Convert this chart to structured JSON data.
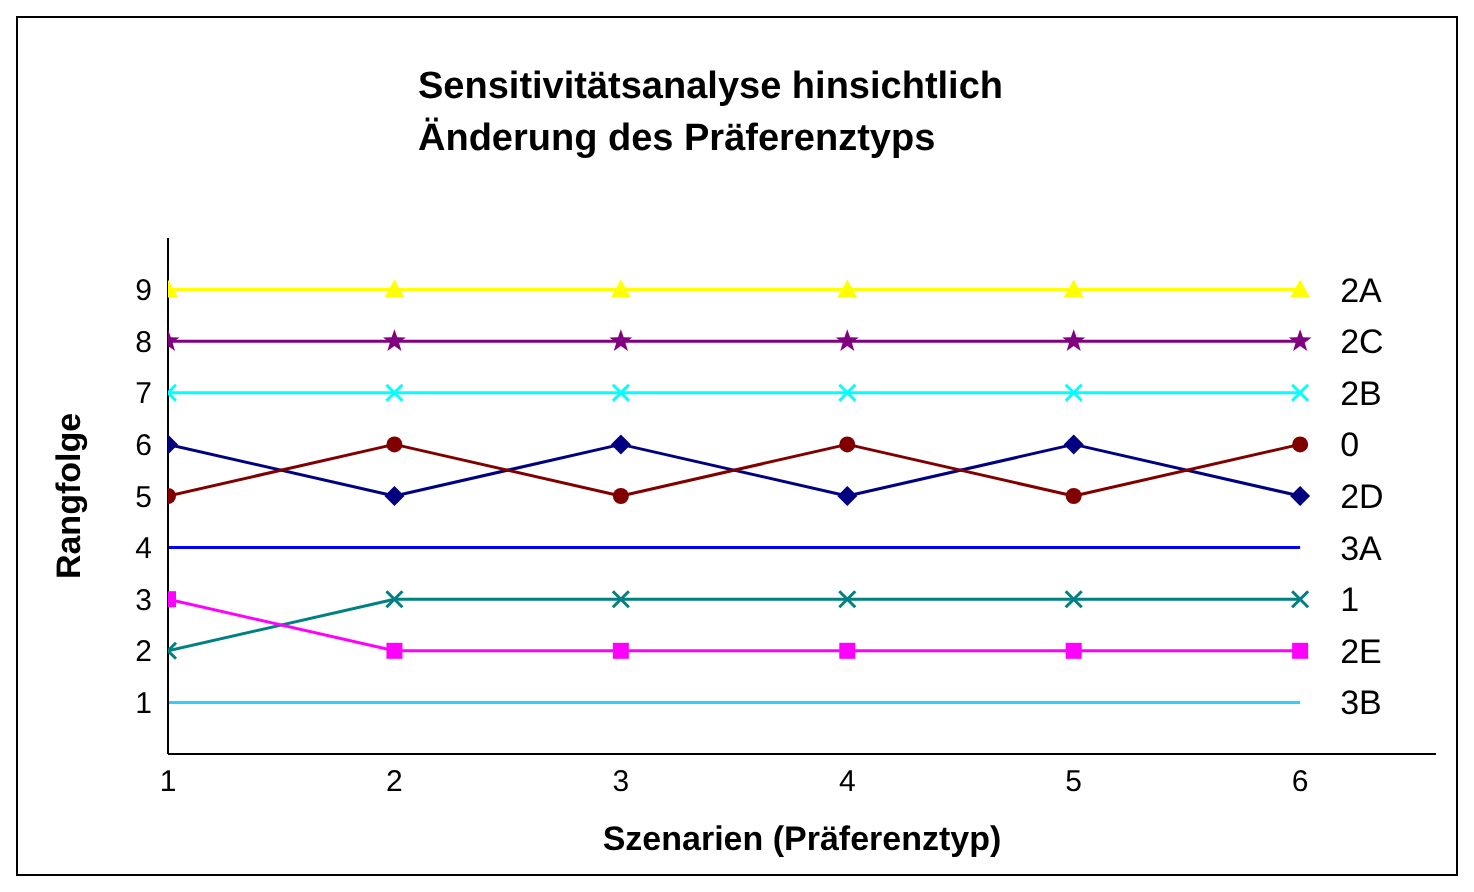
{
  "chart_data": {
    "type": "line",
    "title": "Sensitivitätsanalyse hinsichtlich\nÄnderung des Präferenztyps",
    "xlabel": "Szenarien (Präferenztyp)",
    "ylabel": "Rangfolge",
    "x": [
      1,
      2,
      3,
      4,
      5,
      6
    ],
    "xlim": [
      1,
      6.6
    ],
    "xticks": [
      1,
      2,
      3,
      4,
      5,
      6
    ],
    "ylim": [
      0,
      10
    ],
    "yticks": [
      1,
      2,
      3,
      4,
      5,
      6,
      7,
      8,
      9
    ],
    "series": [
      {
        "name": "2A",
        "color": "#ffff00",
        "marker": "triangle",
        "values": [
          9,
          9,
          9,
          9,
          9,
          9
        ]
      },
      {
        "name": "2C",
        "color": "#800080",
        "marker": "star",
        "values": [
          8,
          8,
          8,
          8,
          8,
          8
        ]
      },
      {
        "name": "2B",
        "color": "#00ffff",
        "marker": "cross",
        "values": [
          7,
          7,
          7,
          7,
          7,
          7
        ]
      },
      {
        "name": "2D",
        "color": "#000080",
        "marker": "diamond",
        "values": [
          6,
          5,
          6,
          5,
          6,
          5
        ]
      },
      {
        "name": "0",
        "color": "#800000",
        "marker": "circle",
        "values": [
          5,
          6,
          5,
          6,
          5,
          6
        ]
      },
      {
        "name": "3A",
        "color": "#0000ff",
        "marker": "none",
        "values": [
          4,
          4,
          4,
          4,
          4,
          4
        ]
      },
      {
        "name": "1",
        "color": "#008080",
        "marker": "cross",
        "values": [
          2,
          3,
          3,
          3,
          3,
          3
        ]
      },
      {
        "name": "2E",
        "color": "#ff00ff",
        "marker": "square",
        "values": [
          3,
          2,
          2,
          2,
          2,
          2
        ]
      },
      {
        "name": "3B",
        "color": "#33ccff",
        "marker": "none",
        "values": [
          1,
          1,
          1,
          1,
          1,
          1
        ]
      }
    ]
  }
}
